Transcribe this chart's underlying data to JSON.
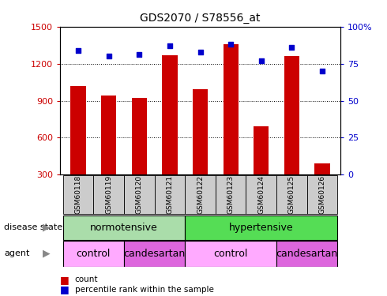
{
  "title": "GDS2070 / S78556_at",
  "samples": [
    "GSM60118",
    "GSM60119",
    "GSM60120",
    "GSM60121",
    "GSM60122",
    "GSM60123",
    "GSM60124",
    "GSM60125",
    "GSM60126"
  ],
  "counts": [
    1020,
    940,
    920,
    1270,
    990,
    1360,
    690,
    1260,
    390
  ],
  "percentile_ranks": [
    84,
    80,
    81,
    87,
    83,
    88,
    77,
    86,
    70
  ],
  "ylim_left": [
    300,
    1500
  ],
  "ylim_right": [
    0,
    100
  ],
  "yticks_left": [
    300,
    600,
    900,
    1200,
    1500
  ],
  "yticks_right": [
    0,
    25,
    50,
    75,
    100
  ],
  "bar_color": "#cc0000",
  "dot_color": "#0000cc",
  "disease_color_norm": "#aaddaa",
  "disease_color_hyp": "#55dd55",
  "agent_color_light": "#ffaaff",
  "agent_color_dark": "#dd44dd",
  "tick_label_color_left": "#cc0000",
  "tick_label_color_right": "#0000cc",
  "bar_width": 0.5
}
